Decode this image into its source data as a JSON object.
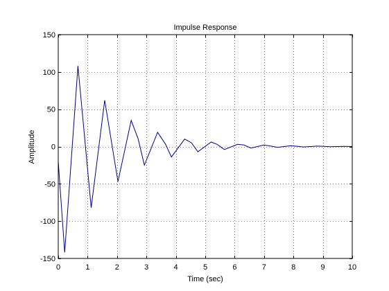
{
  "chart_data": {
    "type": "line",
    "title": "Impulse Response",
    "xlabel": "Time (sec)",
    "ylabel": "Amplitude",
    "xlim": [
      0,
      10
    ],
    "ylim": [
      -150,
      150
    ],
    "xticks": [
      0,
      1,
      2,
      3,
      4,
      5,
      6,
      7,
      8,
      9,
      10
    ],
    "yticks": [
      -150,
      -100,
      -50,
      0,
      50,
      100,
      150
    ],
    "grid": true,
    "grid_style": "dotted",
    "series": [
      {
        "color": "#00008b",
        "x": [
          0,
          0.22,
          0.67,
          1.12,
          1.58,
          2.03,
          2.48,
          2.72,
          2.93,
          3.38,
          3.65,
          3.85,
          4.3,
          4.53,
          4.75,
          5.2,
          5.4,
          5.65,
          6.1,
          6.32,
          6.55,
          7.0,
          7.25,
          7.45,
          7.9,
          8.1,
          8.35,
          8.8,
          9.05,
          9.25,
          9.7,
          9.9,
          10.0
        ],
        "y": [
          -20,
          -142,
          108,
          -82,
          62,
          -47,
          35,
          10,
          -25,
          19,
          3,
          -14,
          10,
          5,
          -7,
          6,
          3,
          -4,
          3,
          2,
          -2,
          2,
          0.5,
          -1,
          1,
          0.5,
          -0.6,
          0.6,
          0.2,
          -0.3,
          0.3,
          0.1,
          0
        ]
      }
    ]
  }
}
